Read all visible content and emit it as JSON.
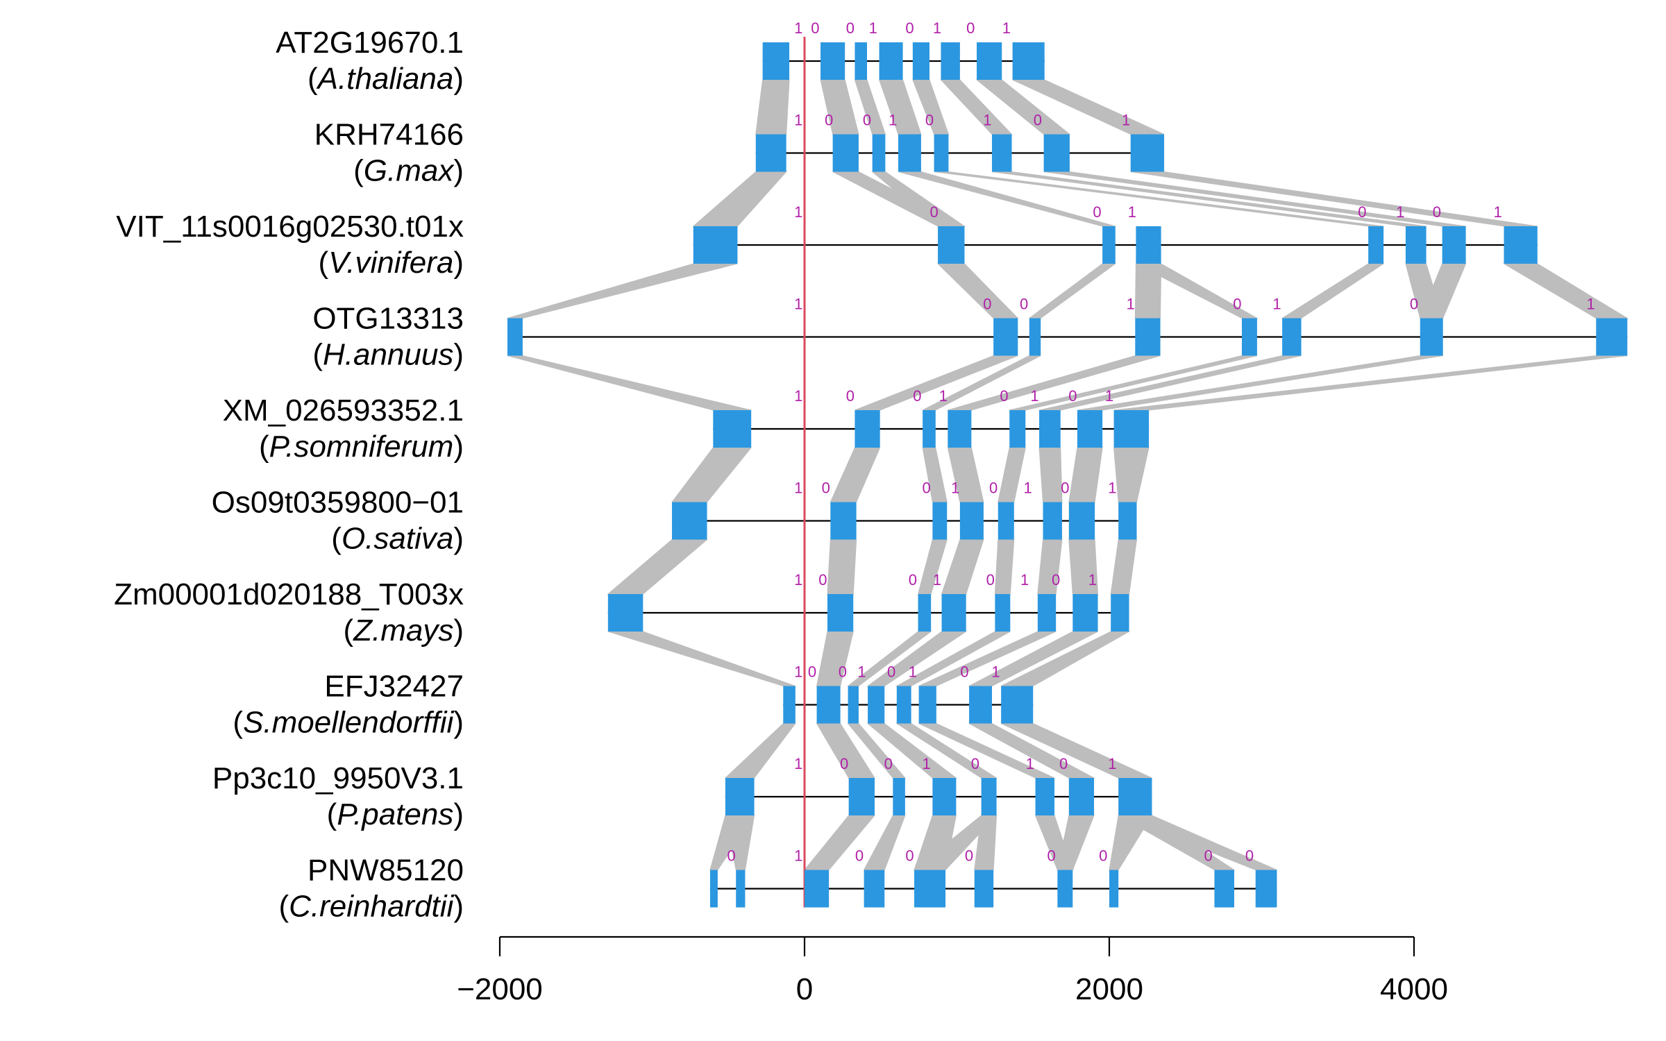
{
  "chart_data": {
    "type": "gene-structure-alignment",
    "xlim": [
      -2000,
      4000
    ],
    "x_ticks": [
      -2000,
      0,
      2000,
      4000
    ],
    "x_tick_labels": [
      "−2000",
      "0",
      "2000",
      "4000"
    ],
    "reference_line_x": 0,
    "colors": {
      "exon": "#2b97e0",
      "connector": "#bdbdbd",
      "intron_line": "#000000",
      "reference_line": "#d9495e",
      "phase_text": "#b01fa8"
    },
    "genes": [
      {
        "id": "AT2G19670.1",
        "species_open": "(",
        "species": "A.thaliana",
        "species_close": ")",
        "span": [
          -275,
          1575
        ],
        "exons": [
          [
            -275,
            -100
          ],
          [
            105,
            265
          ],
          [
            330,
            410
          ],
          [
            490,
            645
          ],
          [
            710,
            820
          ],
          [
            895,
            1020
          ],
          [
            1130,
            1295
          ],
          [
            1365,
            1575
          ]
        ],
        "phases": [
          {
            "x": -40,
            "v": "1"
          },
          {
            "x": 70,
            "v": "0"
          },
          {
            "x": 300,
            "v": "0"
          },
          {
            "x": 450,
            "v": "1"
          },
          {
            "x": 690,
            "v": "0"
          },
          {
            "x": 870,
            "v": "1"
          },
          {
            "x": 1090,
            "v": "0"
          },
          {
            "x": 1325,
            "v": "1"
          }
        ]
      },
      {
        "id": "KRH74166",
        "species_open": "(",
        "species": "G.max",
        "species_close": ")",
        "span": [
          -320,
          2360
        ],
        "exons": [
          [
            -320,
            -120
          ],
          [
            185,
            355
          ],
          [
            445,
            530
          ],
          [
            615,
            765
          ],
          [
            850,
            945
          ],
          [
            1230,
            1360
          ],
          [
            1570,
            1740
          ],
          [
            2140,
            2360
          ]
        ],
        "phases": [
          {
            "x": -40,
            "v": "1"
          },
          {
            "x": 160,
            "v": "0"
          },
          {
            "x": 410,
            "v": "0"
          },
          {
            "x": 580,
            "v": "1"
          },
          {
            "x": 820,
            "v": "0"
          },
          {
            "x": 1200,
            "v": "1"
          },
          {
            "x": 1530,
            "v": "0"
          },
          {
            "x": 2110,
            "v": "1"
          }
        ]
      },
      {
        "id": "VIT_11s0016g02530.t01x",
        "species_open": "(",
        "species": "V.vinifera",
        "species_close": ")",
        "span": [
          -730,
          4810
        ],
        "exons": [
          [
            -730,
            -440
          ],
          [
            875,
            1050
          ],
          [
            1955,
            2040
          ],
          [
            2175,
            2340
          ],
          [
            3700,
            3800
          ],
          [
            3945,
            4080
          ],
          [
            4185,
            4340
          ],
          [
            4590,
            4810
          ]
        ],
        "phases": [
          {
            "x": -40,
            "v": "1"
          },
          {
            "x": 850,
            "v": "0"
          },
          {
            "x": 1920,
            "v": "0"
          },
          {
            "x": 2150,
            "v": "1"
          },
          {
            "x": 3660,
            "v": "0"
          },
          {
            "x": 3910,
            "v": "1"
          },
          {
            "x": 4150,
            "v": "0"
          },
          {
            "x": 4550,
            "v": "1"
          }
        ]
      },
      {
        "id": "OTG13313",
        "species_open": "(",
        "species": "H.annuus",
        "species_close": ")",
        "span": [
          -1950,
          5400
        ],
        "exons": [
          [
            -1950,
            -1850
          ],
          [
            1240,
            1400
          ],
          [
            1475,
            1550
          ],
          [
            2170,
            2335
          ],
          [
            2870,
            2970
          ],
          [
            3135,
            3260
          ],
          [
            4040,
            4190
          ],
          [
            5195,
            5400
          ]
        ],
        "phases": [
          {
            "x": -40,
            "v": "1"
          },
          {
            "x": 1200,
            "v": "0"
          },
          {
            "x": 1440,
            "v": "0"
          },
          {
            "x": 2140,
            "v": "1"
          },
          {
            "x": 2840,
            "v": "0"
          },
          {
            "x": 3100,
            "v": "1"
          },
          {
            "x": 4000,
            "v": "0"
          },
          {
            "x": 5160,
            "v": "1"
          }
        ]
      },
      {
        "id": "XM_026593352.1",
        "species_open": "(",
        "species": "P.somniferum",
        "species_close": ")",
        "span": [
          -600,
          2260
        ],
        "exons": [
          [
            -600,
            -350
          ],
          [
            330,
            495
          ],
          [
            775,
            860
          ],
          [
            940,
            1095
          ],
          [
            1345,
            1450
          ],
          [
            1540,
            1680
          ],
          [
            1790,
            1955
          ],
          [
            2030,
            2260
          ]
        ],
        "phases": [
          {
            "x": -40,
            "v": "1"
          },
          {
            "x": 300,
            "v": "0"
          },
          {
            "x": 740,
            "v": "0"
          },
          {
            "x": 910,
            "v": "1"
          },
          {
            "x": 1310,
            "v": "0"
          },
          {
            "x": 1510,
            "v": "1"
          },
          {
            "x": 1760,
            "v": "0"
          },
          {
            "x": 2000,
            "v": "1"
          }
        ]
      },
      {
        "id": "Os09t0359800−01",
        "species_open": "(",
        "species": "O.sativa",
        "species_close": ")",
        "span": [
          -870,
          2180
        ],
        "exons": [
          [
            -870,
            -640
          ],
          [
            170,
            340
          ],
          [
            840,
            935
          ],
          [
            1020,
            1175
          ],
          [
            1270,
            1375
          ],
          [
            1565,
            1690
          ],
          [
            1735,
            1905
          ],
          [
            2060,
            2180
          ]
        ],
        "phases": [
          {
            "x": -40,
            "v": "1"
          },
          {
            "x": 140,
            "v": "0"
          },
          {
            "x": 800,
            "v": "0"
          },
          {
            "x": 990,
            "v": "1"
          },
          {
            "x": 1240,
            "v": "0"
          },
          {
            "x": 1465,
            "v": "1"
          },
          {
            "x": 1710,
            "v": "0"
          },
          {
            "x": 2020,
            "v": "1"
          }
        ]
      },
      {
        "id": "Zm00001d020188_T003x",
        "species_open": "(",
        "species": "Z.mays",
        "species_close": ")",
        "span": [
          -1290,
          2130
        ],
        "exons": [
          [
            -1290,
            -1060
          ],
          [
            150,
            320
          ],
          [
            745,
            830
          ],
          [
            900,
            1060
          ],
          [
            1250,
            1350
          ],
          [
            1530,
            1650
          ],
          [
            1760,
            1925
          ],
          [
            2010,
            2130
          ]
        ],
        "phases": [
          {
            "x": -40,
            "v": "1"
          },
          {
            "x": 120,
            "v": "0"
          },
          {
            "x": 710,
            "v": "0"
          },
          {
            "x": 870,
            "v": "1"
          },
          {
            "x": 1220,
            "v": "0"
          },
          {
            "x": 1445,
            "v": "1"
          },
          {
            "x": 1650,
            "v": "0"
          },
          {
            "x": 1890,
            "v": "1"
          }
        ]
      },
      {
        "id": "EFJ32427",
        "species_open": "(",
        "species": "S.moellendorffii",
        "species_close": ")",
        "span": [
          -140,
          1500
        ],
        "exons": [
          [
            -140,
            -60
          ],
          [
            80,
            235
          ],
          [
            285,
            355
          ],
          [
            415,
            525
          ],
          [
            605,
            700
          ],
          [
            750,
            865
          ],
          [
            1080,
            1230
          ],
          [
            1290,
            1500
          ]
        ],
        "phases": [
          {
            "x": -40,
            "v": "1"
          },
          {
            "x": 50,
            "v": "0"
          },
          {
            "x": 250,
            "v": "0"
          },
          {
            "x": 375,
            "v": "1"
          },
          {
            "x": 570,
            "v": "0"
          },
          {
            "x": 710,
            "v": "1"
          },
          {
            "x": 1050,
            "v": "0"
          },
          {
            "x": 1255,
            "v": "1"
          }
        ]
      },
      {
        "id": "Pp3c10_9950V3.1",
        "species_open": "(",
        "species": "P.patens",
        "species_close": ")",
        "span": [
          -520,
          2280
        ],
        "exons": [
          [
            -520,
            -330
          ],
          [
            290,
            460
          ],
          [
            580,
            660
          ],
          [
            840,
            995
          ],
          [
            1160,
            1260
          ],
          [
            1515,
            1640
          ],
          [
            1735,
            1900
          ],
          [
            2060,
            2280
          ]
        ],
        "phases": [
          {
            "x": -40,
            "v": "1"
          },
          {
            "x": 260,
            "v": "0"
          },
          {
            "x": 550,
            "v": "0"
          },
          {
            "x": 800,
            "v": "1"
          },
          {
            "x": 1120,
            "v": "0"
          },
          {
            "x": 1480,
            "v": "1"
          },
          {
            "x": 1700,
            "v": "0"
          },
          {
            "x": 2020,
            "v": "1"
          }
        ]
      },
      {
        "id": "PNW85120",
        "species_open": "(",
        "species": "C.reinhardtii",
        "species_close": ")",
        "span": [
          -620,
          3100
        ],
        "exons": [
          [
            -620,
            -570
          ],
          [
            -450,
            -390
          ],
          [
            0,
            160
          ],
          [
            390,
            525
          ],
          [
            720,
            925
          ],
          [
            1115,
            1240
          ],
          [
            1660,
            1760
          ],
          [
            2000,
            2060
          ],
          [
            2690,
            2820
          ],
          [
            2960,
            3100
          ]
        ],
        "phases": [
          {
            "x": -480,
            "v": "0"
          },
          {
            "x": -40,
            "v": "1"
          },
          {
            "x": 360,
            "v": "0"
          },
          {
            "x": 690,
            "v": "0"
          },
          {
            "x": 1080,
            "v": "0"
          },
          {
            "x": 1620,
            "v": "0"
          },
          {
            "x": 1960,
            "v": "0"
          },
          {
            "x": 2650,
            "v": "0"
          },
          {
            "x": 2920,
            "v": "0"
          }
        ]
      }
    ],
    "connectors": [
      [
        [
          0,
          0
        ],
        [
          1,
          1
        ],
        [
          2,
          2
        ],
        [
          3,
          3
        ],
        [
          4,
          4
        ],
        [
          5,
          5
        ],
        [
          6,
          6
        ],
        [
          7,
          7
        ]
      ],
      [
        [
          0,
          0
        ],
        [
          1,
          1
        ],
        [
          2,
          1
        ],
        [
          3,
          2
        ],
        [
          4,
          4
        ],
        [
          5,
          5
        ],
        [
          6,
          6
        ],
        [
          7,
          7
        ]
      ],
      [
        [
          0,
          0
        ],
        [
          1,
          1
        ],
        [
          2,
          2
        ],
        [
          3,
          3
        ],
        [
          3,
          4
        ],
        [
          4,
          5
        ],
        [
          5,
          6
        ],
        [
          6,
          6
        ],
        [
          7,
          7
        ]
      ],
      [
        [
          0,
          0
        ],
        [
          1,
          1
        ],
        [
          2,
          2
        ],
        [
          3,
          3
        ],
        [
          4,
          4
        ],
        [
          5,
          5
        ],
        [
          6,
          6
        ],
        [
          7,
          7
        ]
      ],
      [
        [
          0,
          0
        ],
        [
          1,
          1
        ],
        [
          2,
          2
        ],
        [
          3,
          3
        ],
        [
          4,
          4
        ],
        [
          5,
          5
        ],
        [
          6,
          6
        ],
        [
          7,
          7
        ]
      ],
      [
        [
          0,
          0
        ],
        [
          1,
          1
        ],
        [
          2,
          2
        ],
        [
          3,
          3
        ],
        [
          4,
          4
        ],
        [
          5,
          5
        ],
        [
          6,
          6
        ],
        [
          7,
          7
        ]
      ],
      [
        [
          0,
          0
        ],
        [
          1,
          1
        ],
        [
          2,
          2
        ],
        [
          3,
          3
        ],
        [
          4,
          4
        ],
        [
          5,
          5
        ],
        [
          6,
          6
        ],
        [
          7,
          7
        ]
      ],
      [
        [
          0,
          0
        ],
        [
          1,
          1
        ],
        [
          2,
          2
        ],
        [
          3,
          3
        ],
        [
          4,
          4
        ],
        [
          5,
          5
        ],
        [
          6,
          6
        ],
        [
          7,
          7
        ]
      ],
      [
        [
          0,
          0
        ],
        [
          0,
          1
        ],
        [
          1,
          2
        ],
        [
          2,
          3
        ],
        [
          3,
          4
        ],
        [
          4,
          4
        ],
        [
          4,
          5
        ],
        [
          5,
          6
        ],
        [
          6,
          6
        ],
        [
          7,
          7
        ],
        [
          7,
          8
        ],
        [
          7,
          9
        ]
      ]
    ]
  }
}
